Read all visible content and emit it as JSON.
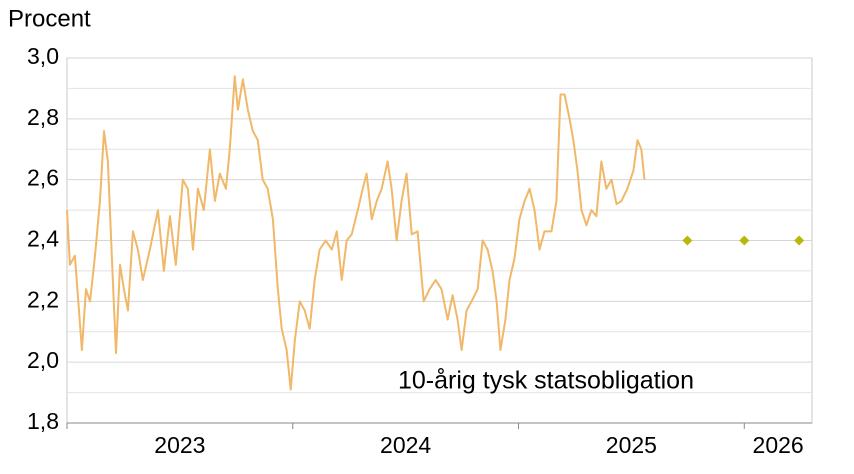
{
  "chart_data": {
    "type": "line",
    "ylabel": "Procent",
    "xlim": [
      2023,
      2026.3
    ],
    "xticks": [
      2023,
      2024,
      2025,
      2026
    ],
    "x_labels": [
      {
        "value": 2023.5,
        "label": "2023"
      },
      {
        "value": 2024.5,
        "label": "2024"
      },
      {
        "value": 2025.5,
        "label": "2025"
      },
      {
        "value": 2026.15,
        "label": "2026"
      }
    ],
    "ylim": [
      1.8,
      3.0
    ],
    "yticks": [
      {
        "value": 1.8,
        "label": "1,8"
      },
      {
        "value": 2.0,
        "label": "2,0"
      },
      {
        "value": 2.2,
        "label": "2,2"
      },
      {
        "value": 2.4,
        "label": "2,4"
      },
      {
        "value": 2.6,
        "label": "2,6"
      },
      {
        "value": 2.8,
        "label": "2,8"
      },
      {
        "value": 3.0,
        "label": "3,0"
      }
    ],
    "ygrid": [
      1.9,
      2.1,
      2.3,
      2.5,
      2.7,
      2.9
    ],
    "grid": true,
    "series": [
      {
        "name": "10-årig tysk statsobligation",
        "color": "#f0b868",
        "style": "line",
        "x": [
          2023.0,
          2023.013,
          2023.035,
          2023.058,
          2023.066,
          2023.084,
          2023.102,
          2023.124,
          2023.146,
          2023.164,
          2023.181,
          2023.199,
          2023.217,
          2023.235,
          2023.252,
          2023.27,
          2023.292,
          2023.314,
          2023.336,
          2023.367,
          2023.403,
          2023.429,
          2023.456,
          2023.482,
          2023.513,
          2023.535,
          2023.558,
          2023.58,
          2023.606,
          2023.633,
          2023.655,
          2023.677,
          2023.704,
          2023.721,
          2023.743,
          2023.757,
          2023.779,
          2023.801,
          2023.823,
          2023.845,
          2023.867,
          2023.889,
          2023.912,
          2023.934,
          2023.951,
          2023.973,
          2023.991,
          2024.009,
          2024.031,
          2024.053,
          2024.075,
          2024.097,
          2024.119,
          2024.146,
          2024.173,
          2024.195,
          2024.217,
          2024.239,
          2024.261,
          2024.288,
          2024.31,
          2024.327,
          2024.35,
          2024.372,
          2024.394,
          2024.42,
          2024.438,
          2024.46,
          2024.482,
          2024.504,
          2024.527,
          2024.553,
          2024.58,
          2024.606,
          2024.633,
          2024.659,
          2024.686,
          2024.708,
          2024.73,
          2024.748,
          2024.77,
          2024.792,
          2024.819,
          2024.841,
          2024.863,
          2024.885,
          2024.903,
          2024.92,
          2024.942,
          2024.96,
          2024.982,
          2025.004,
          2025.027,
          2025.049,
          2025.071,
          2025.093,
          2025.115,
          2025.146,
          2025.168,
          2025.186,
          2025.204,
          2025.226,
          2025.243,
          2025.261,
          2025.279,
          2025.301,
          2025.323,
          2025.345,
          2025.367,
          2025.389,
          2025.412,
          2025.434,
          2025.456,
          2025.482,
          2025.509,
          2025.527,
          2025.544,
          2025.558
        ],
        "values": [
          2.5,
          2.32,
          2.35,
          2.12,
          2.04,
          2.24,
          2.2,
          2.35,
          2.53,
          2.76,
          2.66,
          2.34,
          2.03,
          2.32,
          2.24,
          2.17,
          2.43,
          2.37,
          2.27,
          2.37,
          2.5,
          2.3,
          2.48,
          2.32,
          2.6,
          2.57,
          2.37,
          2.57,
          2.5,
          2.7,
          2.53,
          2.62,
          2.57,
          2.7,
          2.94,
          2.83,
          2.93,
          2.83,
          2.76,
          2.73,
          2.6,
          2.57,
          2.47,
          2.24,
          2.11,
          2.04,
          1.91,
          2.07,
          2.2,
          2.17,
          2.11,
          2.27,
          2.37,
          2.4,
          2.37,
          2.43,
          2.27,
          2.4,
          2.42,
          2.5,
          2.57,
          2.62,
          2.47,
          2.53,
          2.57,
          2.66,
          2.57,
          2.4,
          2.53,
          2.62,
          2.42,
          2.43,
          2.2,
          2.24,
          2.27,
          2.24,
          2.14,
          2.22,
          2.14,
          2.04,
          2.17,
          2.2,
          2.24,
          2.4,
          2.37,
          2.3,
          2.2,
          2.04,
          2.14,
          2.27,
          2.34,
          2.47,
          2.53,
          2.57,
          2.5,
          2.37,
          2.43,
          2.43,
          2.53,
          2.88,
          2.88,
          2.8,
          2.73,
          2.63,
          2.5,
          2.45,
          2.5,
          2.48,
          2.66,
          2.57,
          2.6,
          2.52,
          2.53,
          2.57,
          2.63,
          2.73,
          2.7,
          2.6
        ]
      },
      {
        "color": "#b8b80c",
        "style": "diamond",
        "x": [
          2025.748,
          2026.0,
          2026.243
        ],
        "values": [
          2.4,
          2.4,
          2.4
        ]
      }
    ]
  }
}
